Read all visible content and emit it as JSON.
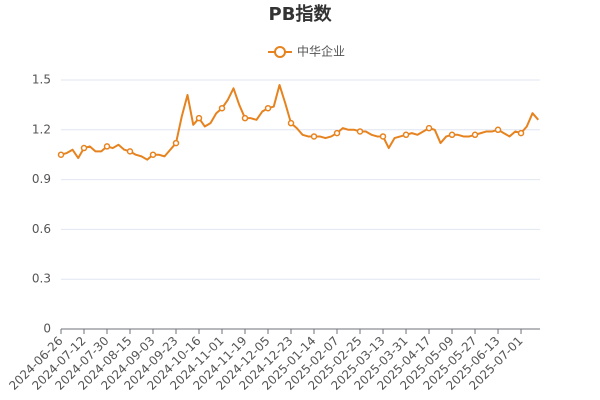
{
  "chart_data": {
    "type": "line",
    "title": "PB指数",
    "categories": [
      "2024-06-26",
      null,
      null,
      null,
      "2024-07-12",
      null,
      null,
      null,
      "2024-07-30",
      null,
      null,
      null,
      "2024-08-15",
      null,
      null,
      null,
      "2024-09-03",
      null,
      null,
      null,
      "2024-09-23",
      null,
      null,
      null,
      "2024-10-16",
      null,
      null,
      null,
      "2024-11-01",
      null,
      null,
      null,
      "2024-11-19",
      null,
      null,
      null,
      "2024-12-05",
      null,
      null,
      null,
      "2024-12-23",
      null,
      null,
      null,
      "2025-01-14",
      null,
      null,
      null,
      "2025-02-07",
      null,
      null,
      null,
      "2025-02-25",
      null,
      null,
      null,
      "2025-03-13",
      null,
      null,
      null,
      "2025-03-31",
      null,
      null,
      null,
      "2025-04-17",
      null,
      null,
      null,
      "2025-05-09",
      null,
      null,
      null,
      "2025-05-27",
      null,
      null,
      null,
      "2025-06-13",
      null,
      null,
      null,
      "2025-07-01",
      null,
      null,
      null
    ],
    "series": [
      {
        "name": "中华企业",
        "color": "#e6831f",
        "values": [
          1.05,
          1.06,
          1.08,
          1.03,
          1.09,
          1.1,
          1.07,
          1.07,
          1.1,
          1.09,
          1.11,
          1.08,
          1.07,
          1.05,
          1.04,
          1.02,
          1.05,
          1.05,
          1.04,
          1.08,
          1.12,
          1.28,
          1.41,
          1.23,
          1.27,
          1.22,
          1.24,
          1.3,
          1.33,
          1.38,
          1.45,
          1.35,
          1.27,
          1.27,
          1.26,
          1.31,
          1.33,
          1.34,
          1.47,
          1.36,
          1.24,
          1.21,
          1.17,
          1.16,
          1.16,
          1.16,
          1.15,
          1.16,
          1.18,
          1.21,
          1.2,
          1.2,
          1.19,
          1.19,
          1.17,
          1.16,
          1.16,
          1.09,
          1.15,
          1.16,
          1.17,
          1.18,
          1.17,
          1.19,
          1.21,
          1.2,
          1.12,
          1.16,
          1.17,
          1.17,
          1.16,
          1.16,
          1.17,
          1.18,
          1.19,
          1.19,
          1.2,
          1.18,
          1.16,
          1.19,
          1.18,
          1.22,
          1.3,
          1.26
        ]
      }
    ],
    "ylim": [
      0,
      1.5
    ],
    "yticks": [
      0,
      0.3,
      0.6,
      0.9,
      1.2,
      1.5
    ],
    "grid": true,
    "legend": "top"
  }
}
